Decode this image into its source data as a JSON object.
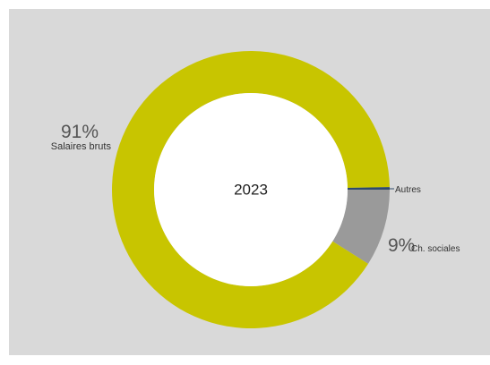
{
  "chart_data": {
    "type": "pie",
    "variant": "donut",
    "center_label": "2023",
    "slices": [
      {
        "name": "Salaires bruts",
        "value": 91,
        "label": "91%",
        "color": "#c8c500"
      },
      {
        "name": "Ch. sociales",
        "value": 9,
        "label": "9%",
        "color": "#9a9a9a"
      },
      {
        "name": "Autres",
        "value": 0.3,
        "label": "",
        "color": "#2e4a6b"
      }
    ],
    "background_color": "#d9d9d9",
    "hole_color": "#ffffff"
  }
}
